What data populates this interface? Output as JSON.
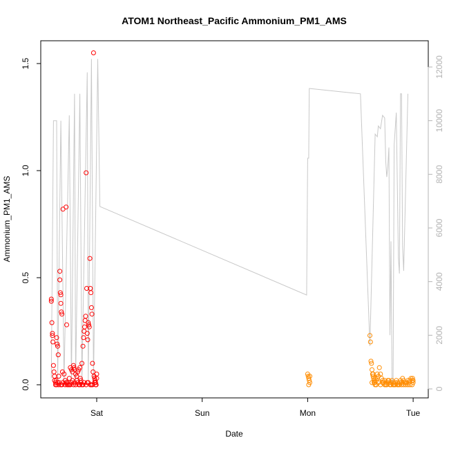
{
  "chart_data": {
    "type": "scatter",
    "title": "ATOM1 Northeast_Pacific Ammonium_PM1_AMS",
    "xlabel": "Date",
    "ylabel": "Ammonium_PM1_AMS",
    "x_unit": "days since Friday 00:00",
    "x_range": [
      0.55,
      4.1
    ],
    "ylim": [
      0,
      1.55
    ],
    "y_ticks": [
      0.0,
      0.5,
      1.0,
      1.5
    ],
    "y_tick_labels": [
      "0.0",
      "0.5",
      "1.0",
      "1.5"
    ],
    "x_ticks": [
      1,
      2,
      3,
      4
    ],
    "x_tick_labels": [
      "Sat",
      "Sun",
      "Mon",
      "Tue"
    ],
    "y2lim": [
      0,
      12500
    ],
    "y2_ticks": [
      0,
      2000,
      4000,
      6000,
      8000,
      10000,
      12000
    ],
    "y2_tick_labels": [
      "0",
      "2000",
      "4000",
      "6000",
      "8000",
      "10000",
      "12000"
    ],
    "grid": false,
    "colors": {
      "series1": "#ff0000",
      "series2": "#ff8c00",
      "altitude": "#c8c8c8"
    },
    "series": [
      {
        "color": "#ff0000",
        "points": [
          [
            0.57,
            0.4
          ],
          [
            0.57,
            0.39
          ],
          [
            0.575,
            0.29
          ],
          [
            0.58,
            0.24
          ],
          [
            0.58,
            0.23
          ],
          [
            0.585,
            0.2
          ],
          [
            0.59,
            0.09
          ],
          [
            0.595,
            0.06
          ],
          [
            0.6,
            0.04
          ],
          [
            0.6,
            0.02
          ],
          [
            0.61,
            0.01
          ],
          [
            0.61,
            0.0
          ],
          [
            0.615,
            0.02
          ],
          [
            0.62,
            0.22
          ],
          [
            0.625,
            0.19
          ],
          [
            0.63,
            0.18
          ],
          [
            0.635,
            0.14
          ],
          [
            0.64,
            0.04
          ],
          [
            0.645,
            0.01
          ],
          [
            0.65,
            0.53
          ],
          [
            0.65,
            0.49
          ],
          [
            0.655,
            0.43
          ],
          [
            0.66,
            0.42
          ],
          [
            0.66,
            0.38
          ],
          [
            0.665,
            0.34
          ],
          [
            0.67,
            0.33
          ],
          [
            0.675,
            0.06
          ],
          [
            0.68,
            0.82
          ],
          [
            0.69,
            0.05
          ],
          [
            0.7,
            0.02
          ],
          [
            0.71,
            0.83
          ],
          [
            0.715,
            0.28
          ],
          [
            0.72,
            0.01
          ],
          [
            0.73,
            0.0
          ],
          [
            0.74,
            0.03
          ],
          [
            0.75,
            0.08
          ],
          [
            0.76,
            0.07
          ],
          [
            0.77,
            0.06
          ],
          [
            0.78,
            0.09
          ],
          [
            0.785,
            0.08
          ],
          [
            0.79,
            0.07
          ],
          [
            0.8,
            0.05
          ],
          [
            0.81,
            0.04
          ],
          [
            0.82,
            0.06
          ],
          [
            0.83,
            0.07
          ],
          [
            0.84,
            0.08
          ],
          [
            0.845,
            0.03
          ],
          [
            0.85,
            0.02
          ],
          [
            0.86,
            0.1
          ],
          [
            0.87,
            0.18
          ],
          [
            0.875,
            0.22
          ],
          [
            0.88,
            0.25
          ],
          [
            0.885,
            0.27
          ],
          [
            0.89,
            0.3
          ],
          [
            0.895,
            0.32
          ],
          [
            0.9,
            0.99
          ],
          [
            0.905,
            0.45
          ],
          [
            0.91,
            0.24
          ],
          [
            0.915,
            0.21
          ],
          [
            0.92,
            0.29
          ],
          [
            0.925,
            0.28
          ],
          [
            0.93,
            0.27
          ],
          [
            0.935,
            0.59
          ],
          [
            0.94,
            0.45
          ],
          [
            0.945,
            0.43
          ],
          [
            0.95,
            0.36
          ],
          [
            0.955,
            0.33
          ],
          [
            0.96,
            0.1
          ],
          [
            0.965,
            0.06
          ],
          [
            0.97,
            1.55
          ],
          [
            0.975,
            0.04
          ],
          [
            0.98,
            0.03
          ],
          [
            0.985,
            0.02
          ],
          [
            0.99,
            0.01
          ],
          [
            0.995,
            0.0
          ],
          [
            1.0,
            0.05
          ],
          [
            1.0,
            0.03
          ],
          [
            0.62,
            0.0
          ],
          [
            0.64,
            0.0
          ],
          [
            0.66,
            0.0
          ],
          [
            0.68,
            0.01
          ],
          [
            0.7,
            0.0
          ],
          [
            0.72,
            0.0
          ],
          [
            0.74,
            0.0
          ],
          [
            0.76,
            0.01
          ],
          [
            0.78,
            0.0
          ],
          [
            0.8,
            0.0
          ],
          [
            0.82,
            0.01
          ],
          [
            0.84,
            0.0
          ],
          [
            0.86,
            0.0
          ],
          [
            0.88,
            0.01
          ],
          [
            0.9,
            0.0
          ],
          [
            0.92,
            0.01
          ],
          [
            0.94,
            0.0
          ],
          [
            0.96,
            0.0
          ],
          [
            0.98,
            0.01
          ],
          [
            0.63,
            0.01
          ],
          [
            0.67,
            0.0
          ],
          [
            0.71,
            0.01
          ],
          [
            0.75,
            0.0
          ],
          [
            0.79,
            0.01
          ],
          [
            0.83,
            0.0
          ],
          [
            0.87,
            0.0
          ],
          [
            0.91,
            0.01
          ],
          [
            0.95,
            0.0
          ],
          [
            0.99,
            0.0
          ],
          [
            0.77,
            0.02
          ],
          [
            0.81,
            0.02
          ],
          [
            0.85,
            0.01
          ]
        ]
      },
      {
        "color": "#ff8c00",
        "points": [
          [
            3.0,
            0.05
          ],
          [
            3.005,
            0.04
          ],
          [
            3.01,
            0.03
          ],
          [
            3.015,
            0.02
          ],
          [
            3.02,
            0.01
          ],
          [
            3.01,
            0.0
          ],
          [
            3.02,
            0.04
          ],
          [
            3.59,
            0.23
          ],
          [
            3.595,
            0.2
          ],
          [
            3.6,
            0.11
          ],
          [
            3.605,
            0.1
          ],
          [
            3.61,
            0.07
          ],
          [
            3.615,
            0.05
          ],
          [
            3.62,
            0.04
          ],
          [
            3.625,
            0.03
          ],
          [
            3.63,
            0.02
          ],
          [
            3.635,
            0.01
          ],
          [
            3.64,
            0.0
          ],
          [
            3.65,
            0.02
          ],
          [
            3.66,
            0.03
          ],
          [
            3.67,
            0.04
          ],
          [
            3.68,
            0.08
          ],
          [
            3.69,
            0.05
          ],
          [
            3.7,
            0.03
          ],
          [
            3.71,
            0.02
          ],
          [
            3.72,
            0.01
          ],
          [
            3.73,
            0.02
          ],
          [
            3.74,
            0.0
          ],
          [
            3.75,
            0.01
          ],
          [
            3.76,
            0.02
          ],
          [
            3.77,
            0.01
          ],
          [
            3.78,
            0.0
          ],
          [
            3.79,
            0.01
          ],
          [
            3.8,
            0.02
          ],
          [
            3.81,
            0.01
          ],
          [
            3.82,
            0.0
          ],
          [
            3.83,
            0.01
          ],
          [
            3.84,
            0.02
          ],
          [
            3.85,
            0.01
          ],
          [
            3.86,
            0.0
          ],
          [
            3.87,
            0.01
          ],
          [
            3.88,
            0.02
          ],
          [
            3.89,
            0.01
          ],
          [
            3.9,
            0.03
          ],
          [
            3.91,
            0.02
          ],
          [
            3.92,
            0.01
          ],
          [
            3.93,
            0.0
          ],
          [
            3.94,
            0.01
          ],
          [
            3.95,
            0.02
          ],
          [
            3.96,
            0.01
          ],
          [
            3.97,
            0.02
          ],
          [
            3.98,
            0.03
          ],
          [
            3.99,
            0.02
          ],
          [
            4.0,
            0.01
          ],
          [
            4.0,
            0.02
          ],
          [
            3.995,
            0.03
          ],
          [
            3.61,
            0.01
          ],
          [
            3.63,
            0.01
          ],
          [
            3.65,
            0.0
          ],
          [
            3.67,
            0.01
          ],
          [
            3.69,
            0.0
          ],
          [
            3.71,
            0.01
          ],
          [
            3.73,
            0.0
          ],
          [
            3.75,
            0.0
          ],
          [
            3.77,
            0.02
          ],
          [
            3.79,
            0.0
          ],
          [
            3.81,
            0.0
          ],
          [
            3.83,
            0.0
          ],
          [
            3.85,
            0.0
          ],
          [
            3.87,
            0.0
          ],
          [
            3.89,
            0.0
          ],
          [
            3.91,
            0.0
          ],
          [
            3.93,
            0.01
          ],
          [
            3.95,
            0.0
          ],
          [
            3.97,
            0.0
          ],
          [
            3.99,
            0.0
          ],
          [
            3.62,
            0.05
          ],
          [
            3.64,
            0.03
          ],
          [
            3.66,
            0.05
          ]
        ]
      }
    ],
    "altitude": [
      [
        0.57,
        400
      ],
      [
        0.59,
        10000
      ],
      [
        0.62,
        10000
      ],
      [
        0.63,
        300
      ],
      [
        0.66,
        10000
      ],
      [
        0.69,
        300
      ],
      [
        0.74,
        10200
      ],
      [
        0.76,
        300
      ],
      [
        0.79,
        11000
      ],
      [
        0.8,
        300
      ],
      [
        0.84,
        11000
      ],
      [
        0.86,
        300
      ],
      [
        0.91,
        11800
      ],
      [
        0.92,
        300
      ],
      [
        0.95,
        12300
      ],
      [
        0.97,
        300
      ],
      [
        1.01,
        12300
      ],
      [
        1.03,
        6800
      ],
      [
        2.99,
        3500
      ],
      [
        3.0,
        8600
      ],
      [
        3.01,
        8600
      ],
      [
        3.015,
        11200
      ],
      [
        3.59,
        1600
      ],
      [
        3.64,
        9500
      ],
      [
        3.66,
        9400
      ],
      [
        3.67,
        9800
      ],
      [
        3.69,
        9700
      ],
      [
        3.71,
        10200
      ],
      [
        3.73,
        10100
      ],
      [
        3.74,
        8500
      ],
      [
        3.75,
        7900
      ],
      [
        3.76,
        8300
      ],
      [
        3.77,
        9000
      ],
      [
        3.78,
        2000
      ],
      [
        3.79,
        5500
      ],
      [
        3.8,
        200
      ],
      [
        3.81,
        300
      ],
      [
        3.82,
        9100
      ],
      [
        3.84,
        10300
      ],
      [
        3.86,
        4900
      ],
      [
        3.87,
        4300
      ],
      [
        3.88,
        11000
      ],
      [
        3.89,
        11000
      ],
      [
        3.9,
        5300
      ],
      [
        3.91,
        4400
      ],
      [
        3.95,
        11000
      ],
      [
        3.5,
        11000
      ],
      [
        3.02,
        11200
      ]
    ]
  }
}
